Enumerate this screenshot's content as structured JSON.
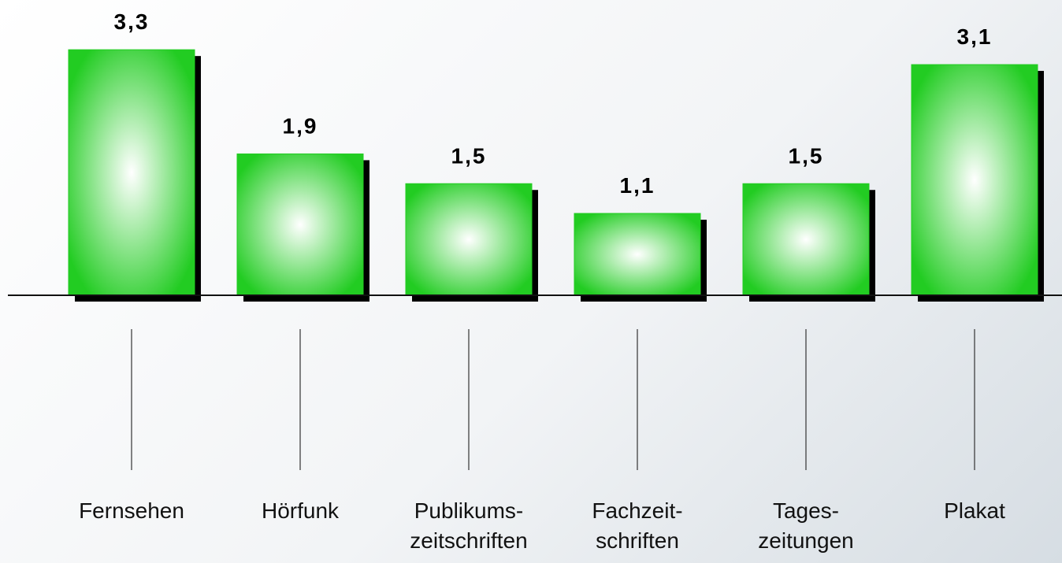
{
  "chart_data": {
    "type": "bar",
    "categories": [
      "Fernsehen",
      "Hörfunk",
      "Publikums-\nzeitschriften",
      "Fachzeit-\nschriften",
      "Tages-\nzeitungen",
      "Plakat"
    ],
    "values": [
      3.3,
      1.9,
      1.5,
      1.1,
      1.5,
      3.1
    ],
    "value_labels": [
      "3,3",
      "1,9",
      "1,5",
      "1,1",
      "1,5",
      "3,1"
    ],
    "color": "#22cc22"
  }
}
